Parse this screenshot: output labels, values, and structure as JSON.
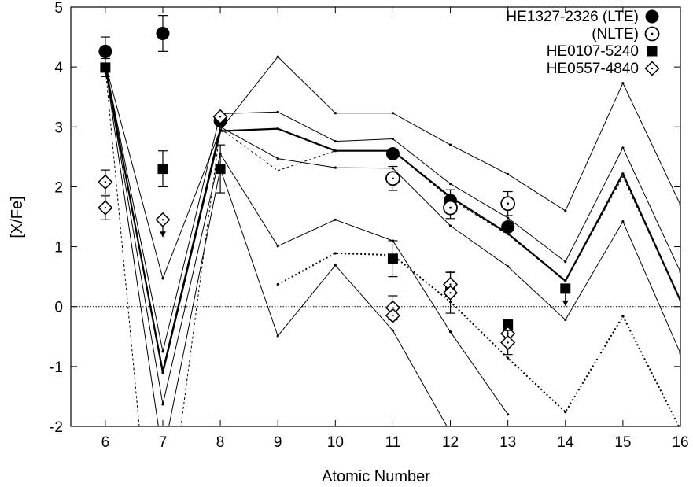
{
  "chart_data": {
    "type": "scatter",
    "title": "",
    "xlabel": "Atomic Number",
    "ylabel": "[X/Fe]",
    "xlim": [
      5.4,
      16
    ],
    "ylim": [
      -2,
      5
    ],
    "xticks": [
      6,
      7,
      8,
      9,
      10,
      11,
      12,
      13,
      14,
      15,
      16
    ],
    "yticks": [
      -2,
      -1,
      0,
      1,
      2,
      3,
      4,
      5
    ],
    "reference_line_y": 0,
    "grid": false,
    "legend_position": "top-right",
    "series": [
      {
        "name": "HE1327-2326 (LTE)",
        "marker": "filled-circle",
        "points": [
          {
            "x": 6,
            "y": 4.26,
            "err": 0.24
          },
          {
            "x": 7,
            "y": 4.56,
            "err": 0.3
          },
          {
            "x": 8,
            "y": 3.1
          },
          {
            "x": 11,
            "y": 2.55
          },
          {
            "x": 12,
            "y": 1.77,
            "err": 0.18
          },
          {
            "x": 13,
            "y": 1.33
          }
        ]
      },
      {
        "name": "(NLTE)",
        "marker": "open-circle",
        "points": [
          {
            "x": 11,
            "y": 2.14,
            "err": 0.2
          },
          {
            "x": 12,
            "y": 1.65,
            "err": 0.18
          },
          {
            "x": 13,
            "y": 1.72,
            "err": 0.2
          }
        ]
      },
      {
        "name": "HE0107-5240",
        "marker": "filled-square",
        "points": [
          {
            "x": 6,
            "y": 3.99,
            "err": 0.15
          },
          {
            "x": 7,
            "y": 2.3,
            "err": 0.3
          },
          {
            "x": 8,
            "y": 2.3,
            "err": 0.4
          },
          {
            "x": 11,
            "y": 0.8,
            "err": 0.3
          },
          {
            "x": 12,
            "y": 0.24,
            "err": 0.35
          },
          {
            "x": 13,
            "y": -0.3
          },
          {
            "x": 14,
            "y": 0.3,
            "upper_limit": true
          }
        ]
      },
      {
        "name": "HE0557-4840",
        "marker": "open-diamond",
        "points": [
          {
            "x": 6,
            "y": 2.08,
            "err": 0.2
          },
          {
            "x": 6,
            "y": 1.65,
            "err": 0.2
          },
          {
            "x": 7,
            "y": 1.45,
            "upper_limit": true
          },
          {
            "x": 8,
            "y": 3.17
          },
          {
            "x": 11,
            "y": -0.02,
            "err": 0.2
          },
          {
            "x": 11,
            "y": -0.15
          },
          {
            "x": 12,
            "y": 0.37,
            "err": 0.2
          },
          {
            "x": 12,
            "y": 0.23
          },
          {
            "x": 13,
            "y": -0.45
          },
          {
            "x": 13,
            "y": -0.6,
            "err": 0.2
          }
        ]
      }
    ],
    "model_curves": [
      {
        "style": "thin-solid",
        "x": [
          6,
          7,
          8,
          9,
          10,
          11,
          12,
          13,
          14,
          15,
          16
        ],
        "y": [
          4.05,
          0.47,
          2.95,
          4.17,
          3.23,
          3.23,
          2.7,
          2.21,
          1.6,
          3.73,
          1.7
        ]
      },
      {
        "style": "thin-solid",
        "x": [
          6,
          7,
          8,
          9,
          10,
          11,
          12,
          13,
          14,
          15,
          16
        ],
        "y": [
          4.05,
          -0.75,
          3.22,
          3.25,
          2.76,
          2.8,
          2.05,
          1.48,
          0.75,
          2.65,
          0.58
        ]
      },
      {
        "style": "thick-solid",
        "x": [
          6,
          7,
          8,
          9,
          10,
          11,
          12,
          13,
          14,
          15,
          16
        ],
        "y": [
          4.0,
          -1.1,
          2.93,
          2.97,
          2.6,
          2.6,
          1.83,
          1.22,
          0.43,
          2.22,
          0.1
        ]
      },
      {
        "style": "thin-solid",
        "x": [
          6,
          7,
          8,
          9,
          10,
          11,
          12,
          13,
          14,
          15,
          16
        ],
        "y": [
          4.0,
          -1.05,
          3.0,
          2.47,
          2.32,
          2.31,
          1.35,
          0.67,
          -0.22,
          1.42,
          -0.78
        ]
      },
      {
        "style": "thin-solid",
        "x": [
          6,
          7,
          8,
          9,
          10,
          11,
          12,
          13
        ],
        "y": [
          4.0,
          -1.63,
          2.55,
          1.01,
          1.45,
          1.1,
          -0.42,
          -1.8
        ]
      },
      {
        "style": "thin-solid",
        "x": [
          6,
          7,
          8,
          9,
          10,
          11,
          12
        ],
        "y": [
          4.0,
          -2.5,
          2.3,
          -0.49,
          0.69,
          -0.4,
          -2.1
        ]
      },
      {
        "style": "thin-dashed",
        "x": [
          6,
          6.6
        ],
        "y": [
          4.0,
          -2.1
        ]
      },
      {
        "style": "thin-dashed",
        "x": [
          7.3,
          8,
          9,
          10
        ],
        "y": [
          -2.1,
          2.97,
          2.27,
          2.6
        ]
      },
      {
        "style": "thin-dashed",
        "x": [
          11,
          12,
          13,
          14,
          15,
          16
        ],
        "y": [
          2.6,
          1.8,
          1.2,
          0.42,
          2.17,
          0.1
        ]
      },
      {
        "style": "thick-dotted",
        "x": [
          9,
          10,
          11,
          12,
          13,
          14,
          15,
          16
        ],
        "y": [
          0.37,
          0.89,
          0.86,
          0.08,
          -0.86,
          -1.76,
          -0.16,
          -2.05
        ]
      }
    ]
  }
}
